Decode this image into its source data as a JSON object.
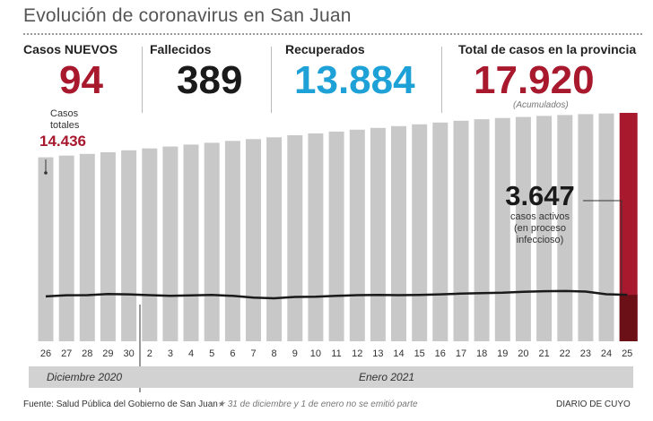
{
  "title": "Evolución de coronavirus en San Juan",
  "stats": {
    "nuevos": {
      "label": "Casos NUEVOS",
      "value": "94",
      "color": "#a8192e"
    },
    "fallecidos": {
      "label": "Fallecidos",
      "value": "389",
      "color": "#1a1a1a"
    },
    "recuperados": {
      "label": "Recuperados",
      "value": "13.884",
      "color": "#1da1d6"
    },
    "total": {
      "label": "Total de casos en la provincia",
      "value": "17.920",
      "color": "#a8192e",
      "note": "(Acumulados)"
    }
  },
  "callout_left": {
    "label_line1": "Casos",
    "label_line2": "totales",
    "value": "14.436"
  },
  "callout_right": {
    "value": "3.647",
    "label_line1": "casos activos",
    "label_line2": "(en proceso",
    "label_line3": "infeccioso)"
  },
  "months": {
    "dec": "Diciembre 2020",
    "jan": "Enero 2021"
  },
  "footer": {
    "source": "Fuente: Salud Pública del Gobierno de San Juan",
    "note": "31 de diciembre y 1 de enero no se emitió parte",
    "brand": "DIARIO DE CUYO"
  },
  "colors": {
    "bar": "#c8c8c8",
    "highlight": "#a8192e",
    "active_highlight": "#6b1016",
    "line": "#1a1a1a"
  },
  "chart_data": {
    "type": "bar",
    "categories": [
      "26",
      "27",
      "28",
      "29",
      "30",
      "2",
      "3",
      "4",
      "5",
      "6",
      "7",
      "8",
      "9",
      "10",
      "11",
      "12",
      "13",
      "14",
      "15",
      "16",
      "17",
      "18",
      "19",
      "20",
      "21",
      "22",
      "23",
      "24",
      "25"
    ],
    "series": [
      {
        "name": "Casos totales",
        "values": [
          14436,
          14570,
          14700,
          14830,
          14980,
          15130,
          15280,
          15430,
          15570,
          15720,
          15860,
          16000,
          16160,
          16310,
          16450,
          16600,
          16740,
          16880,
          17020,
          17160,
          17300,
          17420,
          17520,
          17600,
          17680,
          17750,
          17820,
          17870,
          17920
        ]
      },
      {
        "name": "Casos activos",
        "values": [
          3520,
          3610,
          3620,
          3700,
          3680,
          3620,
          3570,
          3600,
          3630,
          3560,
          3430,
          3370,
          3480,
          3500,
          3560,
          3620,
          3640,
          3620,
          3640,
          3680,
          3740,
          3780,
          3810,
          3880,
          3930,
          3940,
          3900,
          3690,
          3647
        ]
      }
    ],
    "ylim": [
      0,
      18500
    ],
    "highlight_index": 28
  }
}
